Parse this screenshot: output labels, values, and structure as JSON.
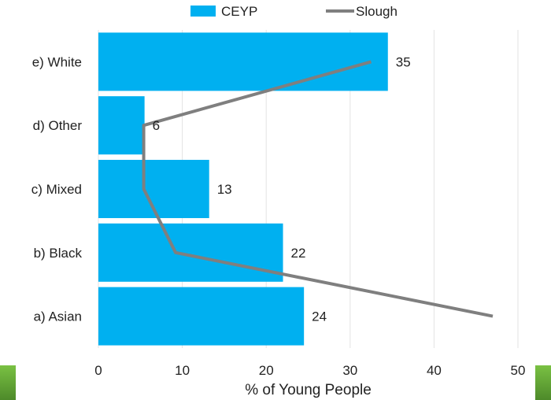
{
  "chart_data": {
    "type": "bar",
    "orientation": "horizontal",
    "categories": [
      "a) Asian",
      "b) Black",
      "c) Mixed",
      "d) Other",
      "e) White"
    ],
    "series": [
      {
        "name": "CEYP",
        "type": "bar",
        "values": [
          24.5,
          22,
          13.2,
          5.5,
          34.5
        ],
        "labels": [
          "24",
          "22",
          "13",
          "6",
          "35"
        ],
        "color": "#00b0f0"
      },
      {
        "name": "Slough",
        "type": "line",
        "values": [
          47,
          9.2,
          5.4,
          5.4,
          32.5
        ],
        "color": "#7f7f7f"
      }
    ],
    "xlabel": "% of Young People",
    "xlim": [
      0,
      50
    ],
    "xticks": [
      0,
      10,
      20,
      30,
      40,
      50
    ],
    "grid": "vertical",
    "legend": "top"
  },
  "decor": {
    "accent": "#7ac143",
    "accent_dark": "#4e8a2a"
  }
}
